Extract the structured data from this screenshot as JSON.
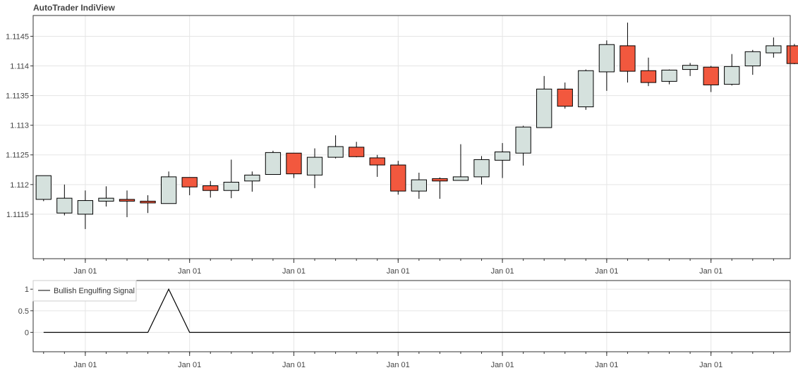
{
  "chart_title": "AutoTrader IndiView",
  "colors": {
    "bull": "#d5e1dd",
    "bear": "#f2583e",
    "grid": "#e5e5e5",
    "frame": "#333333",
    "signal_line": "#000000"
  },
  "chart_data": [
    {
      "type": "candlestick",
      "title": "AutoTrader IndiView",
      "ylim": [
        1.11075,
        1.11485
      ],
      "yticks": [
        1.1115,
        1.112,
        1.1125,
        1.113,
        1.1135,
        1.114,
        1.1145
      ],
      "ytick_labels": [
        "1.1115",
        "1.112",
        "1.1125",
        "1.113",
        "1.1135",
        "1.114",
        "1.1145"
      ],
      "xtick_labels": [
        "Jan 01",
        "Jan 01",
        "Jan 01",
        "Jan 01",
        "Jan 01",
        "Jan 01",
        "Jan 01"
      ],
      "xtick_positions": [
        2,
        7,
        12,
        17,
        22,
        27,
        32
      ],
      "x_range": [
        -0.5,
        35.8
      ],
      "grid": true,
      "candles": [
        {
          "open": 1.11175,
          "high": 1.11215,
          "low": 1.11172,
          "close": 1.11215
        },
        {
          "open": 1.11152,
          "high": 1.112,
          "low": 1.11148,
          "close": 1.11177
        },
        {
          "open": 1.1115,
          "high": 1.1119,
          "low": 1.11125,
          "close": 1.11173
        },
        {
          "open": 1.11172,
          "high": 1.11197,
          "low": 1.11163,
          "close": 1.11177
        },
        {
          "open": 1.11175,
          "high": 1.1119,
          "low": 1.11145,
          "close": 1.11172
        },
        {
          "open": 1.11172,
          "high": 1.11182,
          "low": 1.11152,
          "close": 1.11169
        },
        {
          "open": 1.11168,
          "high": 1.11222,
          "low": 1.11168,
          "close": 1.11213
        },
        {
          "open": 1.11212,
          "high": 1.11212,
          "low": 1.11182,
          "close": 1.11196
        },
        {
          "open": 1.11198,
          "high": 1.11206,
          "low": 1.11178,
          "close": 1.1119
        },
        {
          "open": 1.1119,
          "high": 1.11242,
          "low": 1.11177,
          "close": 1.11204
        },
        {
          "open": 1.11206,
          "high": 1.11222,
          "low": 1.11188,
          "close": 1.11216
        },
        {
          "open": 1.11217,
          "high": 1.11257,
          "low": 1.11217,
          "close": 1.11254
        },
        {
          "open": 1.11253,
          "high": 1.11253,
          "low": 1.11211,
          "close": 1.11218
        },
        {
          "open": 1.11216,
          "high": 1.11261,
          "low": 1.11194,
          "close": 1.11246
        },
        {
          "open": 1.11246,
          "high": 1.11283,
          "low": 1.11244,
          "close": 1.11264
        },
        {
          "open": 1.11263,
          "high": 1.11272,
          "low": 1.11246,
          "close": 1.11247
        },
        {
          "open": 1.11245,
          "high": 1.1125,
          "low": 1.11213,
          "close": 1.11233
        },
        {
          "open": 1.11233,
          "high": 1.1124,
          "low": 1.11183,
          "close": 1.11189
        },
        {
          "open": 1.11189,
          "high": 1.1122,
          "low": 1.11176,
          "close": 1.11208
        },
        {
          "open": 1.1121,
          "high": 1.11212,
          "low": 1.11176,
          "close": 1.11206
        },
        {
          "open": 1.11207,
          "high": 1.11268,
          "low": 1.11207,
          "close": 1.11213
        },
        {
          "open": 1.11213,
          "high": 1.11248,
          "low": 1.112,
          "close": 1.11242
        },
        {
          "open": 1.11241,
          "high": 1.1127,
          "low": 1.11211,
          "close": 1.11255
        },
        {
          "open": 1.11253,
          "high": 1.11299,
          "low": 1.11232,
          "close": 1.11297
        },
        {
          "open": 1.11296,
          "high": 1.11383,
          "low": 1.11296,
          "close": 1.11361
        },
        {
          "open": 1.11361,
          "high": 1.11372,
          "low": 1.11328,
          "close": 1.11332
        },
        {
          "open": 1.11331,
          "high": 1.11394,
          "low": 1.11326,
          "close": 1.11392
        },
        {
          "open": 1.1139,
          "high": 1.11443,
          "low": 1.11358,
          "close": 1.11436
        },
        {
          "open": 1.11434,
          "high": 1.11473,
          "low": 1.11372,
          "close": 1.11391
        },
        {
          "open": 1.11392,
          "high": 1.11414,
          "low": 1.11366,
          "close": 1.11372
        },
        {
          "open": 1.11374,
          "high": 1.11394,
          "low": 1.11369,
          "close": 1.11393
        },
        {
          "open": 1.11394,
          "high": 1.11405,
          "low": 1.11383,
          "close": 1.11401
        },
        {
          "open": 1.11398,
          "high": 1.114,
          "low": 1.11356,
          "close": 1.11368
        },
        {
          "open": 1.11369,
          "high": 1.1142,
          "low": 1.11367,
          "close": 1.11399
        },
        {
          "open": 1.114,
          "high": 1.11427,
          "low": 1.11385,
          "close": 1.11424
        },
        {
          "open": 1.11422,
          "high": 1.11448,
          "low": 1.11414,
          "close": 1.11434
        },
        {
          "open": 1.11434,
          "high": 1.11437,
          "low": 1.11403,
          "close": 1.11404
        }
      ]
    },
    {
      "type": "line",
      "legend": [
        "Bullish Engulfing Signal"
      ],
      "legend_loc": "top-left",
      "ylim": [
        -0.45,
        1.2
      ],
      "yticks": [
        0,
        0.5,
        1
      ],
      "ytick_labels": [
        "0",
        "0.5",
        "1"
      ],
      "xtick_labels": [
        "Jan 01",
        "Jan 01",
        "Jan 01",
        "Jan 01",
        "Jan 01",
        "Jan 01",
        "Jan 01"
      ],
      "xtick_positions": [
        2,
        7,
        12,
        17,
        22,
        27,
        32
      ],
      "x_range": [
        -0.5,
        35.8
      ],
      "grid": true,
      "series": [
        {
          "name": "Bullish Engulfing Signal",
          "x": [
            0,
            1,
            2,
            3,
            4,
            5,
            6,
            7,
            8,
            9,
            10,
            11,
            12,
            13,
            14,
            15,
            16,
            17,
            18,
            19,
            20,
            21,
            22,
            23,
            24,
            25,
            26,
            27,
            28,
            29,
            30,
            31,
            32,
            33,
            34,
            35,
            36
          ],
          "values": [
            0,
            0,
            0,
            0,
            0,
            0,
            1,
            0,
            0,
            0,
            0,
            0,
            0,
            0,
            0,
            0,
            0,
            0,
            0,
            0,
            0,
            0,
            0,
            0,
            0,
            0,
            0,
            0,
            0,
            0,
            0,
            0,
            0,
            0,
            0,
            0,
            0
          ]
        }
      ]
    }
  ]
}
